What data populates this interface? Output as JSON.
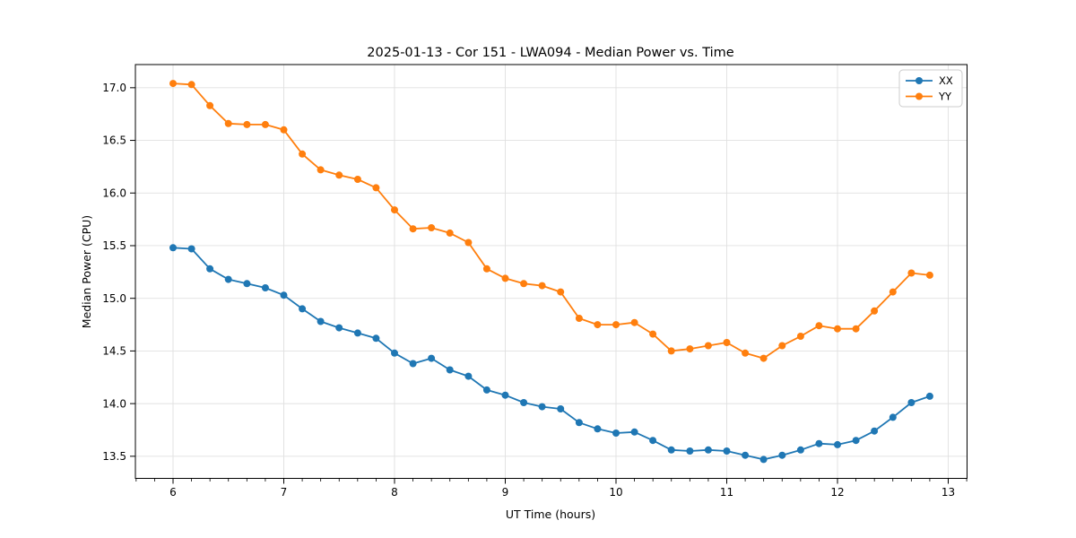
{
  "chart_data": {
    "type": "line",
    "title": "2025-01-13 - Cor 151 - LWA094 - Median Power vs. Time",
    "xlabel": "UT Time (hours)",
    "ylabel": "Median Power (CPU)",
    "xlim": [
      5.66,
      13.17
    ],
    "ylim": [
      13.29,
      17.22
    ],
    "x_ticks": [
      6,
      7,
      8,
      9,
      10,
      11,
      12,
      13
    ],
    "x_tick_labels": [
      "6",
      "7",
      "8",
      "9",
      "10",
      "11",
      "12",
      "13"
    ],
    "y_ticks": [
      13.5,
      14.0,
      14.5,
      15.0,
      15.5,
      16.0,
      16.5,
      17.0
    ],
    "y_tick_labels": [
      "13.5",
      "14.0",
      "14.5",
      "15.0",
      "15.5",
      "16.0",
      "16.5",
      "17.0"
    ],
    "x_minor_step": 0.16667,
    "grid": true,
    "legend_position": "upper right",
    "colors": {
      "xx": "#1f77b4",
      "yy": "#ff7f0e",
      "grid": "#e0e0e0",
      "axis": "#000000",
      "legend_border": "#cccccc",
      "background": "#ffffff"
    },
    "x": [
      6.0,
      6.167,
      6.333,
      6.5,
      6.667,
      6.833,
      7.0,
      7.167,
      7.333,
      7.5,
      7.667,
      7.833,
      8.0,
      8.167,
      8.333,
      8.5,
      8.667,
      8.833,
      9.0,
      9.167,
      9.333,
      9.5,
      9.667,
      9.833,
      10.0,
      10.167,
      10.333,
      10.5,
      10.667,
      10.833,
      11.0,
      11.167,
      11.333,
      11.5,
      11.667,
      11.833,
      12.0,
      12.167,
      12.333,
      12.5,
      12.667,
      12.833
    ],
    "series": [
      {
        "name": "XX",
        "color": "#1f77b4",
        "values": [
          15.48,
          15.47,
          15.28,
          15.18,
          15.14,
          15.1,
          15.03,
          14.9,
          14.78,
          14.72,
          14.67,
          14.62,
          14.48,
          14.38,
          14.43,
          14.32,
          14.26,
          14.13,
          14.08,
          14.01,
          13.97,
          13.95,
          13.82,
          13.76,
          13.72,
          13.73,
          13.65,
          13.56,
          13.55,
          13.56,
          13.55,
          13.51,
          13.47,
          13.51,
          13.56,
          13.62,
          13.61,
          13.65,
          13.74,
          13.87,
          14.01,
          14.07
        ]
      },
      {
        "name": "YY",
        "color": "#ff7f0e",
        "values": [
          17.04,
          17.03,
          16.83,
          16.66,
          16.65,
          16.65,
          16.6,
          16.37,
          16.22,
          16.17,
          16.13,
          16.05,
          15.84,
          15.66,
          15.67,
          15.62,
          15.53,
          15.28,
          15.19,
          15.14,
          15.12,
          15.06,
          14.81,
          14.75,
          14.75,
          14.77,
          14.66,
          14.5,
          14.52,
          14.55,
          14.58,
          14.48,
          14.43,
          14.55,
          14.64,
          14.74,
          14.71,
          14.71,
          14.88,
          15.06,
          15.24,
          15.22
        ]
      }
    ]
  }
}
